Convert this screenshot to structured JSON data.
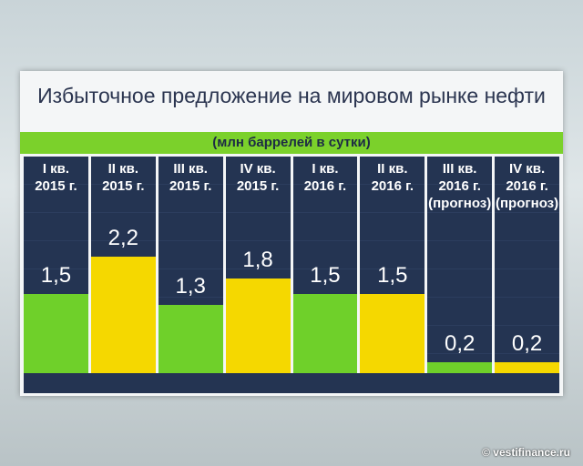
{
  "chart_data": {
    "type": "bar",
    "title": "Избыточное предложение на мировом рынке нефти",
    "subtitle": "(млн баррелей в сутки)",
    "categories": [
      "I кв.\n2015 г.",
      "II кв.\n2015 г.",
      "III кв.\n2015 г.",
      "IV кв.\n2015 г.",
      "I кв.\n2016 г.",
      "II кв.\n2016 г.",
      "III кв.\n2016 г.\n(прогноз)",
      "IV кв.\n2016 г.\n(прогноз)"
    ],
    "values": [
      1.5,
      2.2,
      1.3,
      1.8,
      1.5,
      1.5,
      0.2,
      0.2
    ],
    "value_labels": [
      "1,5",
      "2,2",
      "1,3",
      "1,8",
      "1,5",
      "1,5",
      "0,2",
      "0,2"
    ],
    "colors": [
      "#6fd02a",
      "#f5d800",
      "#6fd02a",
      "#f5d800",
      "#6fd02a",
      "#f5d800",
      "#6fd02a",
      "#f5d800"
    ],
    "ylim": [
      0,
      4.1
    ]
  },
  "watermark": "© vestifinance.ru"
}
